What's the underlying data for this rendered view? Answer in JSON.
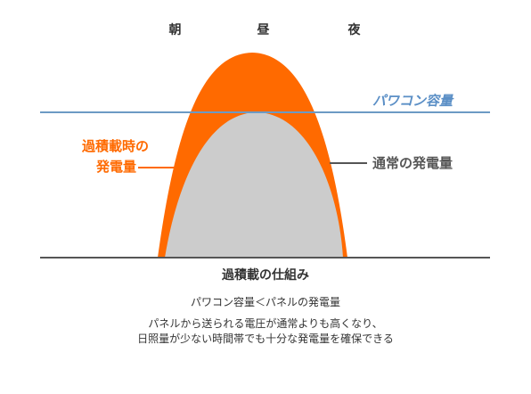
{
  "time_labels": {
    "morning": "朝",
    "noon": "昼",
    "night": "夜"
  },
  "capacity_label": "パワコン容量",
  "overload_label": {
    "line1": "過積載時の",
    "line2": "発電量"
  },
  "normal_label": "通常の発電量",
  "caption": {
    "title": "過積載の仕組み",
    "line1": "パワコン容量＜パネルの発電量",
    "line2": "パネルから送られる電圧が通常よりも高くなり、",
    "line3": "日照量が少ない時間帯でも十分な発電量を確保できる"
  },
  "colors": {
    "overload": "#ff6a00",
    "normal": "#cccccc",
    "capacity_line": "#6c9ac4",
    "capacity_text": "#5b8fc6",
    "baseline": "#555555",
    "text": "#333333"
  }
}
